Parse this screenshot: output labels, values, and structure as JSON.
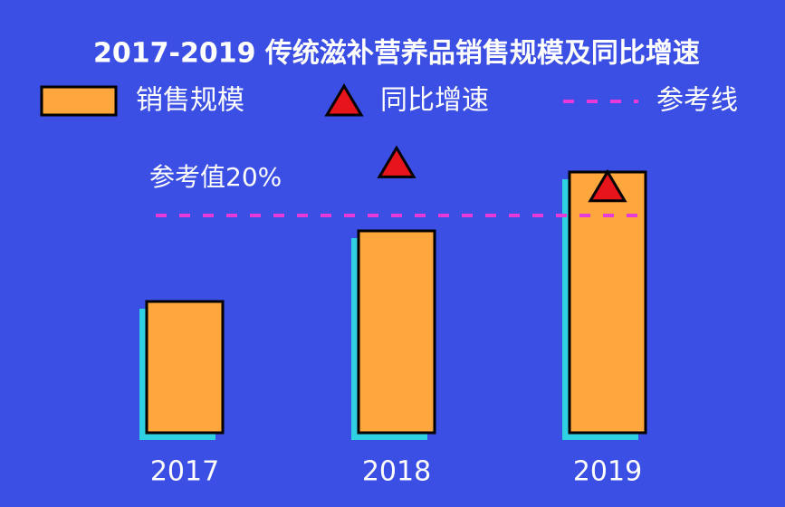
{
  "chart_data": {
    "type": "bar",
    "title": "2017-2019 传统滋补营养品销售规模及同比增速",
    "categories": [
      "2017",
      "2018",
      "2019"
    ],
    "series": [
      {
        "name": "销售规模",
        "color": "#ffa63c",
        "values": [
          145,
          223,
          288
        ]
      },
      {
        "name": "同比增速",
        "color": "#e8141c",
        "axis": "y2",
        "values": [
          null,
          24.8,
          22.6
        ]
      }
    ],
    "reference_name": "参考线",
    "reference_value": 20,
    "reference_color": "#e83ad8",
    "annotation": "参考值20%",
    "ylim": [
      0,
      300
    ],
    "y2lim": [
      0,
      25
    ],
    "shadow_color": "#2ed0e2"
  }
}
